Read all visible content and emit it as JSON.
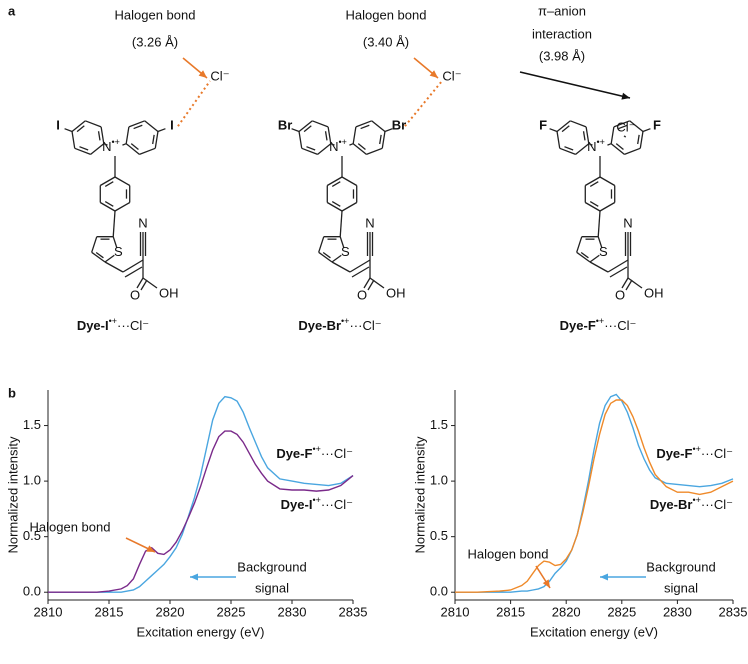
{
  "panel_labels": {
    "a": "a",
    "b": "b"
  },
  "structures": [
    {
      "halogen": "I",
      "halogen_color": "#7a2a8a",
      "nitrogen": "N",
      "charge": "•+",
      "sulfur": "S",
      "nitrile": "N",
      "oxygen": "O",
      "hydroxyl": "OH",
      "anion": "Cl⁻",
      "annotation": [
        "Halogen bond",
        "(3.26 Å)"
      ],
      "annotation_color": "#e8792a",
      "label": {
        "name": "Dye-I",
        "charge": "•+",
        "suffix": "···Cl⁻"
      }
    },
    {
      "halogen": "Br",
      "halogen_color": "#ef8a2a",
      "nitrogen": "N",
      "charge": "•+",
      "sulfur": "S",
      "nitrile": "N",
      "oxygen": "O",
      "hydroxyl": "OH",
      "anion": "Cl⁻",
      "annotation": [
        "Halogen bond",
        "(3.40 Å)"
      ],
      "annotation_color": "#e8792a",
      "label": {
        "name": "Dye-Br",
        "charge": "•+",
        "suffix": "···Cl⁻"
      }
    },
    {
      "halogen": "F",
      "halogen_color": "#3d9be0",
      "nitrogen": "N",
      "charge": "•+",
      "sulfur": "S",
      "nitrile": "N",
      "oxygen": "O",
      "hydroxyl": "OH",
      "anion": "Cl⁻",
      "annotation": [
        "π–anion",
        "interaction",
        "(3.98 Å)"
      ],
      "annotation_color": "#111111",
      "label": {
        "name": "Dye-F",
        "charge": "•+",
        "suffix": "···Cl⁻"
      }
    }
  ],
  "chart_data": [
    {
      "type": "line",
      "xlabel": "Excitation energy (eV)",
      "ylabel": "Normalized intensity",
      "x": [
        2810,
        2812,
        2814,
        2815,
        2816,
        2816.5,
        2817,
        2817.5,
        2818,
        2818.5,
        2819,
        2819.5,
        2820,
        2820.5,
        2821,
        2821.5,
        2822,
        2822.5,
        2823,
        2823.5,
        2824,
        2824.5,
        2825,
        2825.5,
        2826,
        2826.5,
        2827,
        2827.5,
        2828,
        2829,
        2830,
        2831,
        2832,
        2833,
        2834,
        2835
      ],
      "series": [
        {
          "name": "Dye-F",
          "charge": "•+",
          "suffix": "···Cl⁻",
          "color": "#4aa6e0",
          "values": [
            0,
            0,
            0,
            0,
            0,
            0.01,
            0.02,
            0.05,
            0.1,
            0.15,
            0.2,
            0.25,
            0.32,
            0.4,
            0.52,
            0.68,
            0.85,
            1.05,
            1.3,
            1.55,
            1.7,
            1.76,
            1.75,
            1.72,
            1.62,
            1.48,
            1.35,
            1.22,
            1.12,
            1.02,
            1.0,
            0.98,
            0.97,
            0.96,
            0.98,
            1.05
          ]
        },
        {
          "name": "Dye-I",
          "charge": "•+",
          "suffix": "···Cl⁻",
          "color": "#7a2a8a",
          "values": [
            0,
            0,
            0,
            0.01,
            0.03,
            0.06,
            0.12,
            0.25,
            0.37,
            0.4,
            0.35,
            0.34,
            0.38,
            0.45,
            0.55,
            0.67,
            0.8,
            0.95,
            1.12,
            1.28,
            1.4,
            1.45,
            1.45,
            1.42,
            1.35,
            1.25,
            1.15,
            1.07,
            1.0,
            0.93,
            0.92,
            0.92,
            0.91,
            0.92,
            0.96,
            1.05
          ]
        }
      ],
      "annotations": [
        {
          "lines": [
            "Halogen bond"
          ],
          "color": "#e8792a"
        },
        {
          "lines": [
            "Background",
            "signal"
          ],
          "color": "#4aa6e0"
        }
      ],
      "xlim": [
        2810,
        2835
      ],
      "xticks": [
        2810,
        2815,
        2820,
        2825,
        2830,
        2835
      ],
      "ylim": [
        -0.07,
        1.82
      ],
      "yticks": [
        {
          "value": 0,
          "label": "0.0"
        },
        0.5,
        {
          "value": 1,
          "label": "1.0"
        },
        1.5
      ]
    },
    {
      "type": "line",
      "xlabel": "Excitation energy (eV)",
      "ylabel": "Normalized intensity",
      "x": [
        2810,
        2812,
        2814,
        2815,
        2816,
        2816.5,
        2817,
        2817.5,
        2818,
        2818.5,
        2819,
        2819.5,
        2820,
        2820.5,
        2821,
        2821.5,
        2822,
        2822.5,
        2823,
        2823.5,
        2824,
        2824.5,
        2825,
        2825.5,
        2826,
        2826.5,
        2827,
        2827.5,
        2828,
        2829,
        2830,
        2831,
        2832,
        2833,
        2834,
        2835
      ],
      "series": [
        {
          "name": "Dye-F",
          "charge": "•+",
          "suffix": "···Cl⁻",
          "color": "#4aa6e0",
          "values": [
            0,
            0,
            0,
            0,
            0.01,
            0.01,
            0.02,
            0.03,
            0.05,
            0.1,
            0.17,
            0.22,
            0.28,
            0.38,
            0.52,
            0.75,
            1.0,
            1.28,
            1.52,
            1.68,
            1.76,
            1.78,
            1.72,
            1.62,
            1.48,
            1.32,
            1.2,
            1.1,
            1.03,
            0.98,
            0.97,
            0.96,
            0.95,
            0.96,
            0.98,
            1.02
          ]
        },
        {
          "name": "Dye-Br",
          "charge": "•+",
          "suffix": "···Cl⁻",
          "color": "#ef8a2a",
          "values": [
            0,
            0,
            0.01,
            0.02,
            0.06,
            0.1,
            0.17,
            0.24,
            0.28,
            0.27,
            0.24,
            0.25,
            0.3,
            0.38,
            0.52,
            0.72,
            0.95,
            1.2,
            1.42,
            1.6,
            1.7,
            1.73,
            1.73,
            1.68,
            1.58,
            1.45,
            1.3,
            1.17,
            1.06,
            0.95,
            0.9,
            0.9,
            0.88,
            0.9,
            0.95,
            1.0
          ]
        }
      ],
      "annotations": [
        {
          "lines": [
            "Halogen bond"
          ],
          "color": "#e8792a"
        },
        {
          "lines": [
            "Background",
            "signal"
          ],
          "color": "#4aa6e0"
        }
      ],
      "xlim": [
        2810,
        2835
      ],
      "xticks": [
        2810,
        2815,
        2820,
        2825,
        2830,
        2835
      ],
      "ylim": [
        -0.07,
        1.82
      ],
      "yticks": [
        {
          "value": 0,
          "label": "0.0"
        },
        0.5,
        {
          "value": 1,
          "label": "1.0"
        },
        1.5
      ]
    }
  ]
}
